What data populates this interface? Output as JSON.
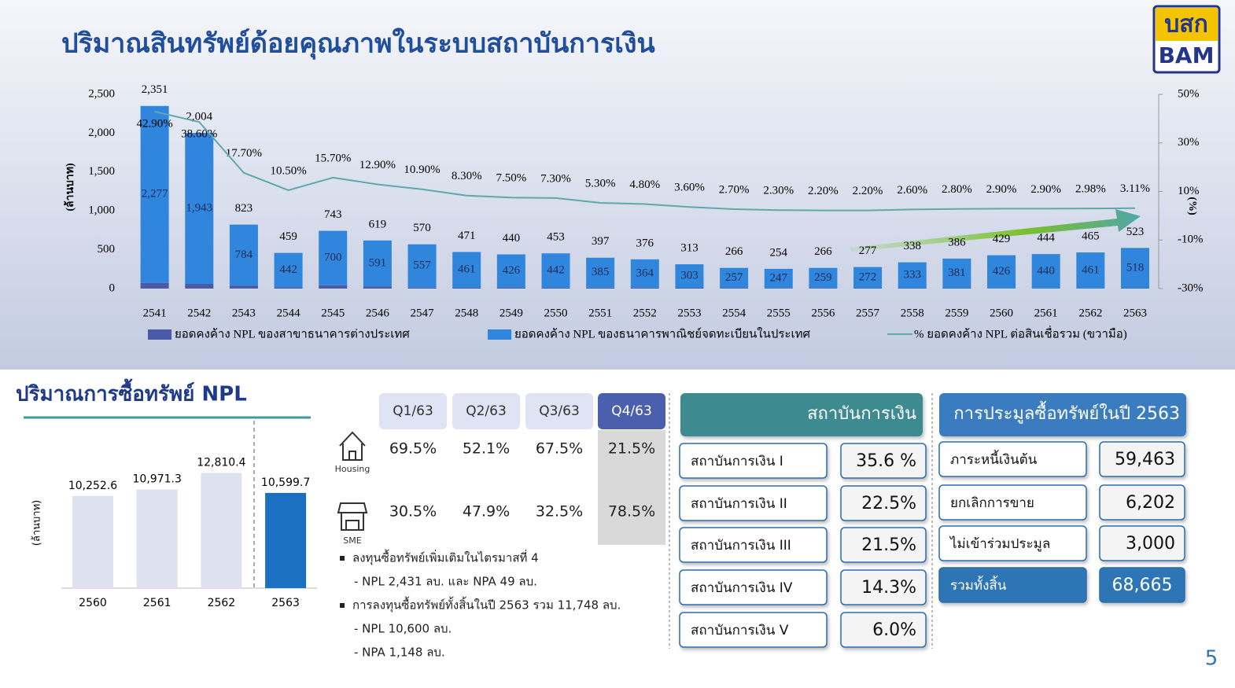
{
  "header": {
    "title": "ปริมาณสินทรัพย์ด้อยคุณภาพในระบบสถาบันการเงิน",
    "logo_top": "บสก",
    "logo_bottom": "BAM",
    "page_number": "5"
  },
  "chart_data": [
    {
      "type": "bar",
      "stacked": true,
      "categories": [
        "2541",
        "2542",
        "2543",
        "2544",
        "2545",
        "2546",
        "2547",
        "2548",
        "2549",
        "2550",
        "2551",
        "2552",
        "2553",
        "2554",
        "2555",
        "2556",
        "2557",
        "2558",
        "2559",
        "2560",
        "2561",
        "2562",
        "2563"
      ],
      "y_label": "(ล้านบาท)",
      "y2_label": "(%)",
      "ylim": [
        0,
        2500
      ],
      "yticks": [
        0,
        500,
        {
          "value": 1000,
          "label": "1,000"
        },
        {
          "value": 1500,
          "label": "1,500"
        },
        {
          "value": 2000,
          "label": "2,000"
        },
        {
          "value": 2500,
          "label": "2,500"
        }
      ],
      "y2lim": [
        -30,
        50
      ],
      "y2ticks": [
        {
          "value": -30,
          "label": "-30%"
        },
        {
          "value": -10,
          "label": "-10%"
        },
        {
          "value": 10,
          "label": "10%"
        },
        {
          "value": 30,
          "label": "30%"
        },
        {
          "value": 50,
          "label": "50%"
        }
      ],
      "series": [
        {
          "name": "ยอดคงค้าง NPL ของสาขาธนาคารต่างประเทศ",
          "color": "#4a5aa6",
          "values": [
            74,
            61,
            39,
            17,
            43,
            28,
            13,
            10,
            14,
            11,
            12,
            12,
            10,
            9,
            7,
            7,
            5,
            5,
            5,
            3,
            4,
            4,
            5
          ]
        },
        {
          "name": "ยอดคงค้าง NPL ของธนาคารพาณิชย์จดทะเบียนในประเทศ",
          "color": "#2f86dc",
          "values": [
            2277,
            1943,
            784,
            442,
            700,
            591,
            557,
            461,
            426,
            442,
            385,
            364,
            303,
            257,
            247,
            259,
            272,
            333,
            381,
            426,
            440,
            461,
            518
          ],
          "value_labels": [
            "2,277",
            "1,943",
            "784",
            "442",
            "700",
            "591",
            "557",
            "461",
            "426",
            "442",
            "385",
            "364",
            "303",
            "257",
            "247",
            "259",
            "272",
            "333",
            "381",
            "426",
            "440",
            "461",
            "518"
          ]
        },
        {
          "name": "% ยอดคงค้าง NPL ต่อสินเชื่อรวม (ขวามือ)",
          "color": "#5ea9ad",
          "type": "line",
          "axis": "y2",
          "values": [
            42.9,
            38.6,
            17.7,
            10.5,
            15.7,
            12.9,
            10.9,
            8.3,
            7.5,
            7.3,
            5.3,
            4.8,
            3.6,
            2.7,
            2.3,
            2.2,
            2.2,
            2.6,
            2.8,
            2.9,
            2.9,
            2.98,
            3.11
          ],
          "value_labels": [
            "42.90%",
            "38.60%",
            "17.70%",
            "10.50%",
            "15.70%",
            "12.90%",
            "10.90%",
            "8.30%",
            "7.50%",
            "7.30%",
            "5.30%",
            "4.80%",
            "3.60%",
            "2.70%",
            "2.30%",
            "2.20%",
            "2.20%",
            "2.60%",
            "2.80%",
            "2.90%",
            "2.90%",
            "2.98%",
            "3.11%"
          ]
        }
      ],
      "total_labels": [
        "2,351",
        "2,004",
        "823",
        "459",
        "743",
        "619",
        "570",
        "471",
        "440",
        "453",
        "397",
        "376",
        "313",
        "266",
        "254",
        "266",
        "277",
        "338",
        "386",
        "429",
        "444",
        "465",
        "523"
      ]
    },
    {
      "type": "bar",
      "title": "ปริมาณการซื้อทรัพย์ NPL",
      "y_label": "(ล้านบาท)",
      "categories": [
        "2560",
        "2561",
        "2562",
        "2563"
      ],
      "values": [
        10252.6,
        10971.3,
        12810.4,
        10599.7
      ],
      "value_labels": [
        "10,252.6",
        "10,971.3",
        "12,810.4",
        "10,599.7"
      ],
      "colors": [
        "#dde1f0",
        "#dde1f0",
        "#dde1f0",
        "#1b70c1"
      ],
      "ylim": [
        0,
        14000
      ]
    }
  ],
  "table": {
    "columns": [
      "Q1/63",
      "Q2/63",
      "Q3/63",
      "Q4/63"
    ],
    "rows": [
      {
        "label": "Housing",
        "values": [
          "69.5%",
          "52.1%",
          "67.5%",
          "21.5%"
        ]
      },
      {
        "label": "SME",
        "values": [
          "30.5%",
          "47.9%",
          "32.5%",
          "78.5%"
        ]
      }
    ]
  },
  "notes": [
    "ลงทุนซื้อทรัพย์เพิ่มเติมในไตรมาสที่ 4",
    "-  NPL  2,431 ลบ.  และ NPA 49 ลบ.",
    "การลงทุนซื้อทรัพย์ทั้งสิ้นในปี 2563 รวม 11,748 ลบ.",
    "- NPL  10,600 ลบ.",
    "- NPA  1,148 ลบ."
  ],
  "institutions": {
    "title": "สถาบันการเงิน",
    "rows": [
      [
        "สถาบันการเงิน I",
        "35.6 %"
      ],
      [
        "สถาบันการเงิน II",
        "22.5%"
      ],
      [
        "สถาบันการเงิน III",
        "21.5%"
      ],
      [
        "สถาบันการเงิน IV",
        "14.3%"
      ],
      [
        "สถาบันการเงิน V",
        "6.0%"
      ]
    ]
  },
  "auction": {
    "title": "การประมูลซื้อทรัพย์ในปี 2563",
    "rows": [
      [
        "ภาระหนี้เงินต้น",
        "59,463"
      ],
      [
        "ยกเลิกการขาย",
        "6,202"
      ],
      [
        "ไม่เข้าร่วมประมูล",
        "3,000"
      ],
      [
        "รวมทั้งสิ้น",
        "68,665"
      ]
    ]
  }
}
